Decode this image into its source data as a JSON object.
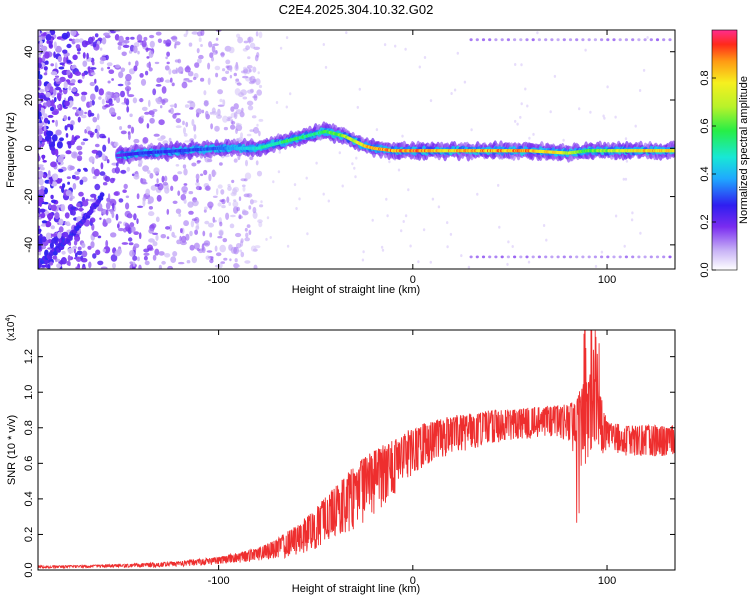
{
  "figure": {
    "title": "C2E4.2025.304.10.32.G02"
  },
  "colors": {
    "snr_line": "#ee2e2e",
    "ridge_core": "#ff2a00",
    "noise": "#7a2cf0",
    "colormap": [
      "#ffffff",
      "#ece6fb",
      "#c9b4f6",
      "#8a3cf2",
      "#2f1ef0",
      "#1fa8ff",
      "#18e8d6",
      "#7ff52a",
      "#f6f01f",
      "#ff9a14",
      "#ff2a1a",
      "#ff2d8f"
    ]
  },
  "chart_data": [
    {
      "type": "heatmap",
      "title": "C2E4.2025.304.10.32.G02",
      "xlabel": "Height of straight line (km)",
      "ylabel": "Frequency (Hz)",
      "xlim": [
        -193,
        135
      ],
      "ylim": [
        -50,
        49
      ],
      "xticks": [
        -100,
        0,
        100
      ],
      "xtick_labels": [
        "-100",
        "0",
        "100"
      ],
      "yticks": [
        -40,
        -20,
        0,
        20,
        40
      ],
      "ytick_labels": [
        "-40",
        "-20",
        "0",
        "20",
        "40"
      ],
      "colorbar": {
        "label": "Normalized spectral amplitude",
        "range": [
          0,
          1
        ],
        "ticks": [
          0.0,
          0.2,
          0.4,
          0.6,
          0.8
        ],
        "tick_labels": [
          "0.0",
          "0.2",
          "0.4",
          "0.6",
          "0.8"
        ]
      },
      "ridge": {
        "description_values": "dominant frequency (Hz) vs height (km)",
        "x": [
          -152,
          -140,
          -120,
          -100,
          -80,
          -70,
          -60,
          -50,
          -45,
          -40,
          -35,
          -30,
          -25,
          -20,
          -10,
          0,
          10,
          20,
          40,
          60,
          80,
          90,
          100,
          120,
          135
        ],
        "y": [
          -3,
          -2,
          -1,
          0,
          0,
          2,
          4,
          6,
          7,
          6,
          5,
          3,
          1,
          0,
          -1,
          -1,
          -1,
          -1,
          -1,
          -1,
          -2,
          -1,
          -1,
          -1,
          -1
        ],
        "amplitude": [
          0.2,
          0.3,
          0.3,
          0.35,
          0.5,
          0.55,
          0.6,
          0.55,
          0.6,
          0.65,
          0.7,
          0.75,
          0.85,
          0.9,
          0.9,
          0.95,
          0.85,
          0.85,
          0.9,
          0.9,
          0.75,
          0.6,
          0.7,
          0.85,
          0.8
        ]
      },
      "low_frequency_streak": {
        "x": [
          -193,
          -180,
          -170,
          -160
        ],
        "y": [
          -48,
          -40,
          -30,
          -20
        ]
      },
      "spur_lines_hz": [
        45,
        -45
      ]
    },
    {
      "type": "line",
      "title": "",
      "xlabel": "Height of straight line (km)",
      "ylabel": "SNR (10 * v/v)",
      "scale_label": "(x10",
      "scale_exponent": "4",
      "xlim": [
        -193,
        135
      ],
      "ylim": [
        0.0,
        1.35
      ],
      "xticks": [
        -100,
        0,
        100
      ],
      "xtick_labels": [
        "-100",
        "0",
        "100"
      ],
      "yticks": [
        0.0,
        0.2,
        0.4,
        0.6,
        0.8,
        1.0,
        1.2
      ],
      "ytick_labels": [
        "0.0",
        "0.2",
        "0.4",
        "0.6",
        "0.8",
        "1.0",
        "1.2"
      ],
      "series": [
        {
          "name": "SNR",
          "x": [
            -193,
            -180,
            -160,
            -140,
            -120,
            -100,
            -90,
            -80,
            -70,
            -60,
            -50,
            -40,
            -30,
            -20,
            -10,
            0,
            10,
            20,
            30,
            40,
            50,
            60,
            70,
            80,
            85,
            90,
            93,
            95,
            100,
            110,
            120,
            135
          ],
          "y": [
            0.02,
            0.02,
            0.025,
            0.03,
            0.04,
            0.06,
            0.08,
            0.1,
            0.14,
            0.2,
            0.28,
            0.38,
            0.48,
            0.56,
            0.64,
            0.72,
            0.77,
            0.8,
            0.82,
            0.84,
            0.85,
            0.86,
            0.87,
            0.87,
            0.85,
            0.95,
            1.05,
            0.95,
            0.78,
            0.76,
            0.76,
            0.76
          ],
          "spread": [
            0.01,
            0.01,
            0.01,
            0.015,
            0.02,
            0.03,
            0.04,
            0.05,
            0.08,
            0.12,
            0.16,
            0.2,
            0.25,
            0.25,
            0.22,
            0.18,
            0.16,
            0.15,
            0.14,
            0.13,
            0.12,
            0.12,
            0.12,
            0.14,
            0.3,
            0.35,
            0.35,
            0.3,
            0.12,
            0.12,
            0.12,
            0.12
          ]
        }
      ]
    }
  ]
}
